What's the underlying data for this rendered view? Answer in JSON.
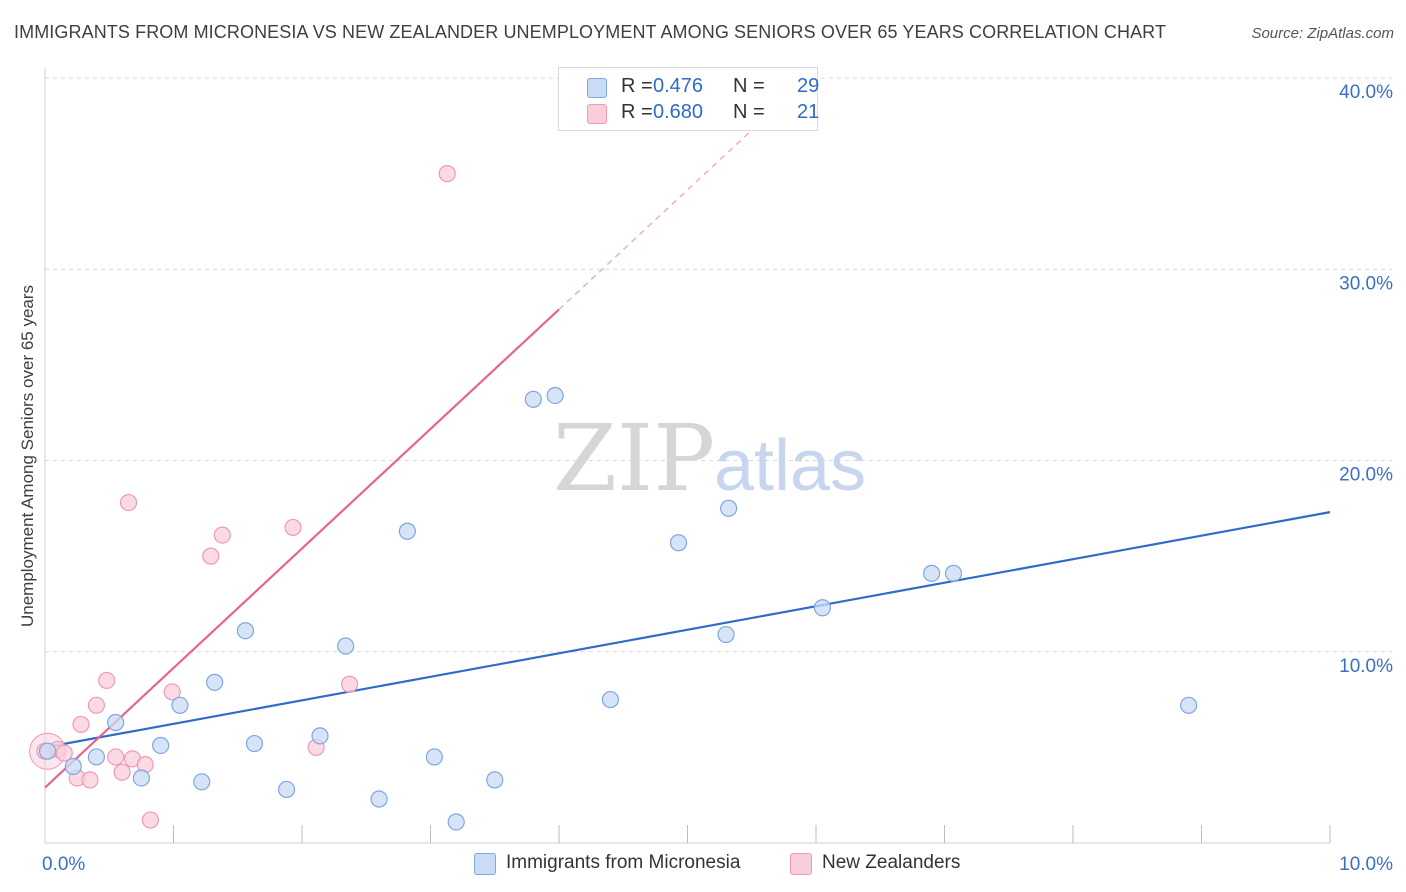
{
  "title": "IMMIGRANTS FROM MICRONESIA VS NEW ZEALANDER UNEMPLOYMENT AMONG SENIORS OVER 65 YEARS CORRELATION CHART",
  "source": "Source: ZipAtlas.com",
  "watermark": {
    "zip": "ZIP",
    "atlas": "atlas"
  },
  "colors": {
    "blue": "#2f6bc9",
    "blue_fill": "#c9dbf6",
    "blue_stroke": "#7ea6e0",
    "pink": "#e8648f",
    "pink_fill": "#f9cedb",
    "pink_stroke": "#ee9ab5",
    "grid": "#d9d9d9",
    "tick_text": "#3a6fc4"
  },
  "legend": {
    "rows": [
      {
        "r_label": "R =",
        "r_value": "0.476",
        "n_label": "N =",
        "n_value": "29"
      },
      {
        "r_label": "R =",
        "r_value": "0.680",
        "n_label": "N =",
        "n_value": "21"
      }
    ]
  },
  "bottom_legend": [
    "Immigrants from Micronesia",
    "New Zealanders"
  ],
  "chart_data": {
    "type": "scatter",
    "xlabel": "",
    "ylabel": "Unemployment Among Seniors over 65 years",
    "xlim": [
      0,
      10
    ],
    "ylim": [
      0,
      40
    ],
    "x_tick_labels": [
      {
        "value": 0,
        "label": "0.0%"
      },
      {
        "value": 10,
        "label": "10.0%"
      }
    ],
    "y_tick_labels": [
      {
        "value": 10,
        "label": "10.0%"
      },
      {
        "value": 20,
        "label": "20.0%"
      },
      {
        "value": 30,
        "label": "30.0%"
      },
      {
        "value": 40,
        "label": "40.0%"
      }
    ],
    "x_minor_ticks": [
      1,
      2,
      3,
      4,
      5,
      6,
      7,
      8,
      9,
      10
    ],
    "series": [
      {
        "name": "Immigrants from Micronesia",
        "r": 0.476,
        "n": 29,
        "trend": {
          "x0": 0,
          "y0": 5.0,
          "x1": 10,
          "y1": 17.3
        },
        "points": [
          [
            0.02,
            4.8
          ],
          [
            0.22,
            4.0
          ],
          [
            0.4,
            4.5
          ],
          [
            0.55,
            6.3
          ],
          [
            0.75,
            3.4
          ],
          [
            0.9,
            5.1
          ],
          [
            1.05,
            7.2
          ],
          [
            1.22,
            3.2
          ],
          [
            1.32,
            8.4
          ],
          [
            1.63,
            5.2
          ],
          [
            1.56,
            11.1
          ],
          [
            1.88,
            2.8
          ],
          [
            2.14,
            5.6
          ],
          [
            2.34,
            10.3
          ],
          [
            2.6,
            2.3
          ],
          [
            2.82,
            16.3
          ],
          [
            3.03,
            4.5
          ],
          [
            3.2,
            1.1
          ],
          [
            3.5,
            3.3
          ],
          [
            3.8,
            23.2
          ],
          [
            3.97,
            23.4
          ],
          [
            4.4,
            7.5
          ],
          [
            4.93,
            15.7
          ],
          [
            5.3,
            10.9
          ],
          [
            5.32,
            17.5
          ],
          [
            6.05,
            12.3
          ],
          [
            6.9,
            14.1
          ],
          [
            7.07,
            14.1
          ],
          [
            8.9,
            7.2
          ]
        ]
      },
      {
        "name": "New Zealanders",
        "r": 0.68,
        "n": 21,
        "trend": {
          "x0": 0,
          "y0": 2.9,
          "x1": 4.0,
          "y1": 27.9
        },
        "trend_dashed": {
          "x0": 4.0,
          "y0": 27.9,
          "x1": 5.6,
          "y1": 37.9
        },
        "points": [
          [
            0.0,
            4.8
          ],
          [
            0.1,
            4.9
          ],
          [
            0.15,
            4.7
          ],
          [
            0.25,
            3.4
          ],
          [
            0.35,
            3.3
          ],
          [
            0.28,
            6.2
          ],
          [
            0.4,
            7.2
          ],
          [
            0.48,
            8.5
          ],
          [
            0.55,
            4.5
          ],
          [
            0.6,
            3.7
          ],
          [
            0.68,
            4.4
          ],
          [
            0.78,
            4.1
          ],
          [
            0.82,
            1.2
          ],
          [
            0.65,
            17.8
          ],
          [
            0.99,
            7.9
          ],
          [
            1.29,
            15.0
          ],
          [
            1.38,
            16.1
          ],
          [
            1.93,
            16.5
          ],
          [
            2.11,
            5.0
          ],
          [
            2.37,
            8.3
          ],
          [
            3.13,
            35.0
          ]
        ]
      }
    ]
  }
}
